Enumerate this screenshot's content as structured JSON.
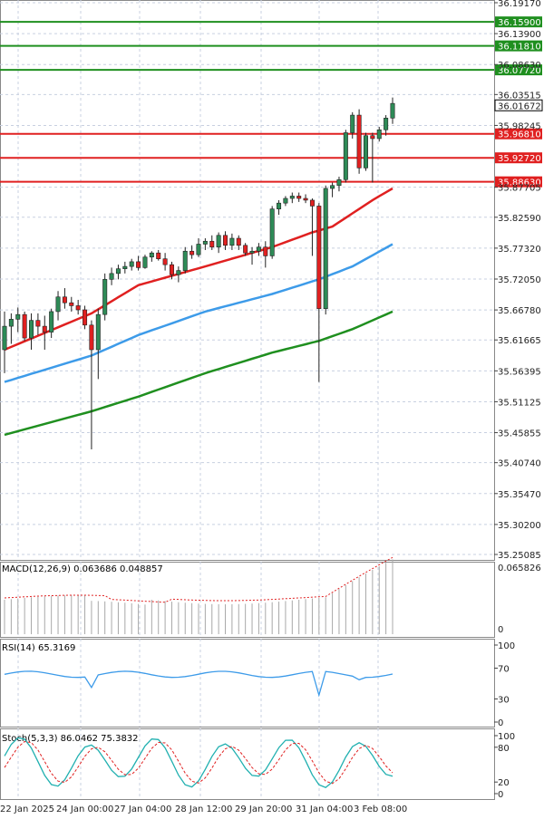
{
  "chart_data": {
    "type": "candlestick",
    "colors": {
      "up": "#2e8b57",
      "down": "#e02020",
      "ema_fast": "#e02020",
      "ema_mid": "#3d9be9",
      "ema_slow": "#1f8f1f",
      "support": "#e02020",
      "resistance": "#1f8f1f",
      "grid": "#c8d0e0"
    },
    "price_axis": {
      "ticks": [
        "36.19170",
        "36.13900",
        "36.08630",
        "36.03515",
        "35.98245",
        "35.87705",
        "35.82590",
        "35.77320",
        "35.72050",
        "35.66780",
        "35.61665",
        "35.56395",
        "35.51125",
        "35.45855",
        "35.40740",
        "35.35470",
        "35.30200",
        "35.25085"
      ],
      "range": [
        35.25085,
        36.1917
      ]
    },
    "levels": [
      {
        "label": "36.15900",
        "value": 36.159,
        "kind": "resistance"
      },
      {
        "label": "36.11810",
        "value": 36.1181,
        "kind": "resistance"
      },
      {
        "label": "36.07720",
        "value": 36.0772,
        "kind": "resistance"
      },
      {
        "label": "35.96810",
        "value": 35.9681,
        "kind": "support"
      },
      {
        "label": "35.92720",
        "value": 35.9272,
        "kind": "support"
      },
      {
        "label": "35.88630",
        "value": 35.8863,
        "kind": "support"
      }
    ],
    "current_price": "36.01672",
    "time_labels": [
      "22 Jan 2025",
      "24 Jan 00:00",
      "27 Jan 04:00",
      "28 Jan 12:00",
      "29 Jan 20:00",
      "31 Jan 04:00",
      "3 Feb 08:00"
    ],
    "candles": [
      [
        35.6,
        35.665,
        35.56,
        35.64
      ],
      [
        35.64,
        35.662,
        35.61,
        35.652
      ],
      [
        35.652,
        35.672,
        35.63,
        35.66
      ],
      [
        35.66,
        35.665,
        35.615,
        35.62
      ],
      [
        35.62,
        35.662,
        35.6,
        35.65
      ],
      [
        35.65,
        35.662,
        35.625,
        35.64
      ],
      [
        35.64,
        35.658,
        35.6,
        35.63
      ],
      [
        35.63,
        35.67,
        35.62,
        35.665
      ],
      [
        35.665,
        35.7,
        35.65,
        35.69
      ],
      [
        35.69,
        35.705,
        35.67,
        35.68
      ],
      [
        35.68,
        35.69,
        35.665,
        35.675
      ],
      [
        35.675,
        35.685,
        35.66,
        35.668
      ],
      [
        35.668,
        35.675,
        35.635,
        35.642
      ],
      [
        35.642,
        35.65,
        35.43,
        35.6
      ],
      [
        35.6,
        35.67,
        35.55,
        35.66
      ],
      [
        35.66,
        35.73,
        35.65,
        35.72
      ],
      [
        35.72,
        35.74,
        35.71,
        35.73
      ],
      [
        35.73,
        35.745,
        35.72,
        35.738
      ],
      [
        35.738,
        35.75,
        35.73,
        35.742
      ],
      [
        35.742,
        35.755,
        35.735,
        35.75
      ],
      [
        35.75,
        35.76,
        35.735,
        35.74
      ],
      [
        35.74,
        35.762,
        35.738,
        35.758
      ],
      [
        35.758,
        35.768,
        35.75,
        35.765
      ],
      [
        35.765,
        35.77,
        35.752,
        35.755
      ],
      [
        35.755,
        35.765,
        35.735,
        35.745
      ],
      [
        35.745,
        35.75,
        35.72,
        35.728
      ],
      [
        35.728,
        35.742,
        35.715,
        35.735
      ],
      [
        35.735,
        35.775,
        35.73,
        35.768
      ],
      [
        35.768,
        35.778,
        35.755,
        35.762
      ],
      [
        35.762,
        35.79,
        35.758,
        35.78
      ],
      [
        35.78,
        35.79,
        35.77,
        35.785
      ],
      [
        35.785,
        35.795,
        35.77,
        35.775
      ],
      [
        35.775,
        35.8,
        35.765,
        35.795
      ],
      [
        35.795,
        35.802,
        35.77,
        35.778
      ],
      [
        35.778,
        35.798,
        35.77,
        35.79
      ],
      [
        35.79,
        35.795,
        35.77,
        35.778
      ],
      [
        35.778,
        35.782,
        35.76,
        35.765
      ],
      [
        35.765,
        35.775,
        35.745,
        35.768
      ],
      [
        35.768,
        35.782,
        35.76,
        35.775
      ],
      [
        35.775,
        35.785,
        35.74,
        35.76
      ],
      [
        35.76,
        35.845,
        35.755,
        35.84
      ],
      [
        35.84,
        35.855,
        35.83,
        35.85
      ],
      [
        35.85,
        35.862,
        35.845,
        35.858
      ],
      [
        35.858,
        35.868,
        35.85,
        35.862
      ],
      [
        35.862,
        35.868,
        35.852,
        35.858
      ],
      [
        35.858,
        35.865,
        35.85,
        35.855
      ],
      [
        35.855,
        35.858,
        35.76,
        35.845
      ],
      [
        35.845,
        35.85,
        35.545,
        35.67
      ],
      [
        35.67,
        35.88,
        35.66,
        35.875
      ],
      [
        35.875,
        35.885,
        35.86,
        35.88
      ],
      [
        35.88,
        35.895,
        35.87,
        35.89
      ],
      [
        35.89,
        35.975,
        35.885,
        35.97
      ],
      [
        35.97,
        36.005,
        35.96,
        36.0
      ],
      [
        36.0,
        36.01,
        35.9,
        35.91
      ],
      [
        35.91,
        35.97,
        35.905,
        35.965
      ],
      [
        35.965,
        35.97,
        35.885,
        35.96
      ],
      [
        35.96,
        35.98,
        35.955,
        35.975
      ],
      [
        35.975,
        36.0,
        35.965,
        35.995
      ],
      [
        35.995,
        36.03,
        35.985,
        36.02
      ]
    ],
    "ma_series": [
      {
        "key": "ema_fast",
        "start": 35.6,
        "end": 35.874,
        "waypoints": [
          [
            0,
            35.6
          ],
          [
            13,
            35.662
          ],
          [
            20,
            35.71
          ],
          [
            30,
            35.742
          ],
          [
            40,
            35.775
          ],
          [
            46,
            35.8
          ],
          [
            49,
            35.81
          ],
          [
            55,
            35.855
          ],
          [
            58,
            35.875
          ]
        ]
      },
      {
        "key": "ema_mid",
        "start": 35.545,
        "end": 35.78,
        "waypoints": [
          [
            0,
            35.545
          ],
          [
            13,
            35.59
          ],
          [
            20,
            35.625
          ],
          [
            30,
            35.665
          ],
          [
            40,
            35.695
          ],
          [
            47,
            35.72
          ],
          [
            52,
            35.742
          ],
          [
            58,
            35.78
          ]
        ]
      },
      {
        "key": "ema_slow",
        "start": 35.455,
        "end": 35.665,
        "waypoints": [
          [
            0,
            35.455
          ],
          [
            13,
            35.495
          ],
          [
            20,
            35.52
          ],
          [
            30,
            35.56
          ],
          [
            40,
            35.595
          ],
          [
            47,
            35.615
          ],
          [
            52,
            35.635
          ],
          [
            58,
            35.665
          ]
        ]
      }
    ],
    "macd": {
      "label": "MACD(12,26,9) 0.063686 0.048857",
      "axis_top": "0.065826",
      "axis_zero": "0"
    },
    "rsi": {
      "label": "RSI(14) 65.3169",
      "levels": [
        "100",
        "70",
        "30",
        "0"
      ]
    },
    "stoch": {
      "label": "Stoch(5,3,3) 86.0462 75.3832",
      "levels": [
        "100",
        "80",
        "20",
        "0"
      ]
    }
  }
}
